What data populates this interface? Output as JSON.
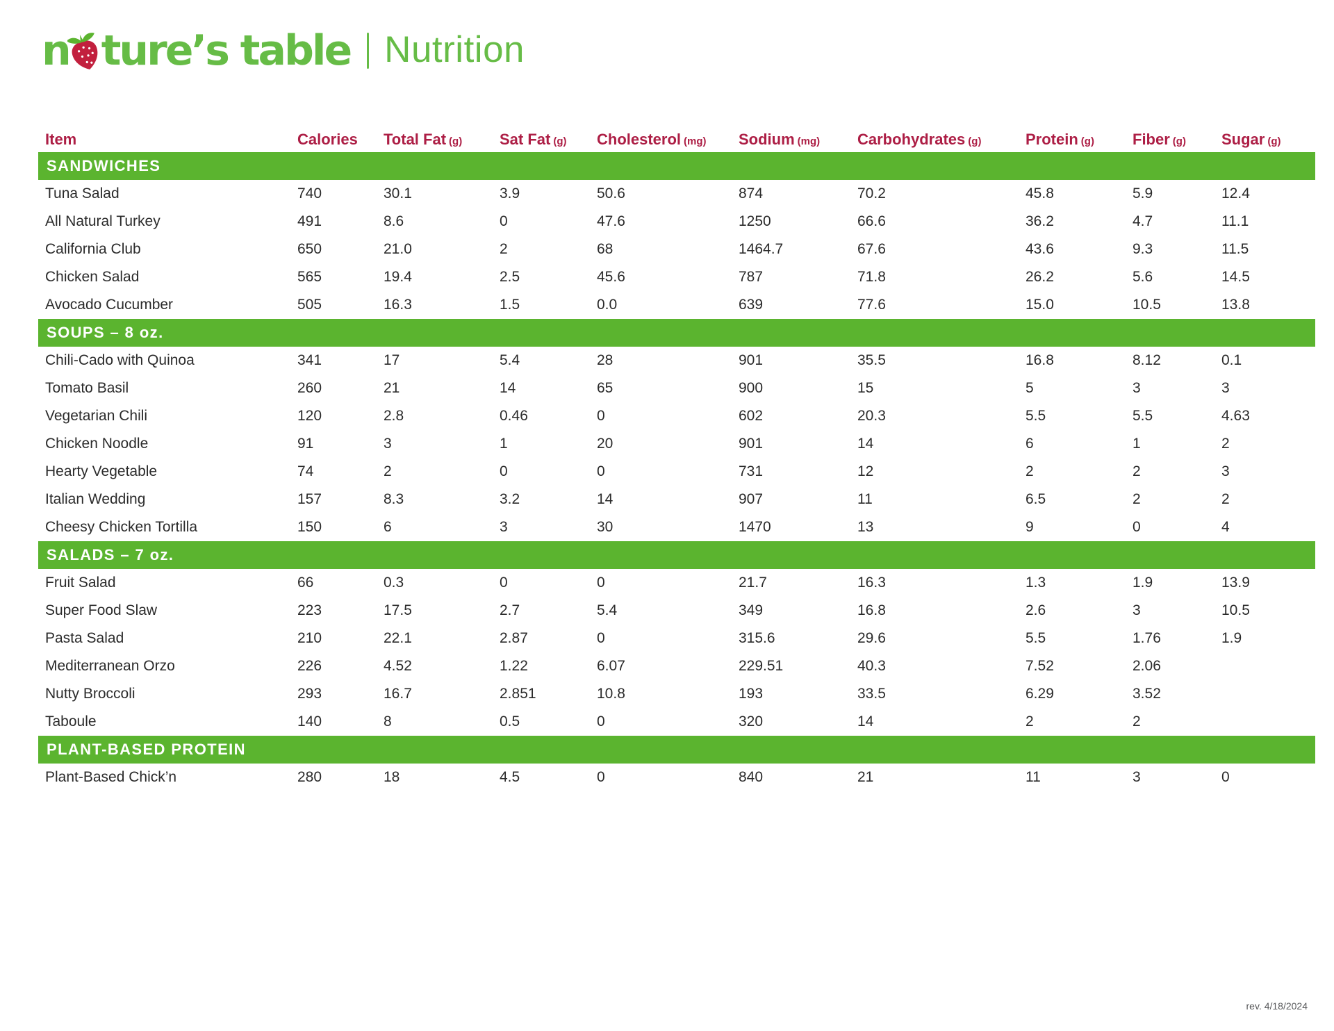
{
  "logo": {
    "part1": "n",
    "part2": "ture’s table",
    "title": "Nutrition"
  },
  "colors": {
    "logo_green": "#66BC46",
    "bar_green": "#5BB42F",
    "header_crimson": "#AD1E45",
    "strawberry_red": "#C2203E",
    "text_dark": "#2b2b2b"
  },
  "table": {
    "columns": [
      {
        "label": "Item",
        "unit": ""
      },
      {
        "label": "Calories",
        "unit": ""
      },
      {
        "label": "Total Fat",
        "unit": "(g)"
      },
      {
        "label": "Sat Fat",
        "unit": "(g)"
      },
      {
        "label": "Cholesterol",
        "unit": "(mg)"
      },
      {
        "label": "Sodium",
        "unit": "(mg)"
      },
      {
        "label": "Carbohydrates",
        "unit": "(g)"
      },
      {
        "label": "Protein",
        "unit": "(g)"
      },
      {
        "label": "Fiber",
        "unit": "(g)"
      },
      {
        "label": "Sugar",
        "unit": "(g)"
      }
    ],
    "sections": [
      {
        "header": "SANDWICHES",
        "rows": [
          {
            "item": "Tuna Salad",
            "values": [
              "740",
              "30.1",
              "3.9",
              "50.6",
              "874",
              "70.2",
              "45.8",
              "5.9",
              "12.4"
            ]
          },
          {
            "item": "All Natural Turkey",
            "values": [
              "491",
              "8.6",
              "0",
              "47.6",
              "1250",
              "66.6",
              "36.2",
              "4.7",
              "11.1"
            ]
          },
          {
            "item": "California Club",
            "values": [
              "650",
              "21.0",
              "2",
              "68",
              "1464.7",
              "67.6",
              "43.6",
              "9.3",
              "11.5"
            ]
          },
          {
            "item": "Chicken Salad",
            "values": [
              "565",
              "19.4",
              "2.5",
              "45.6",
              "787",
              "71.8",
              "26.2",
              "5.6",
              "14.5"
            ]
          },
          {
            "item": "Avocado Cucumber",
            "values": [
              "505",
              "16.3",
              "1.5",
              "0.0",
              "639",
              "77.6",
              "15.0",
              "10.5",
              "13.8"
            ]
          }
        ]
      },
      {
        "header": "SOUPS – 8 oz.",
        "rows": [
          {
            "item": "Chili-Cado with Quinoa",
            "values": [
              "341",
              "17",
              "5.4",
              "28",
              "901",
              "35.5",
              "16.8",
              "8.12",
              "0.1"
            ]
          },
          {
            "item": "Tomato Basil",
            "values": [
              "260",
              "21",
              "14",
              "65",
              "900",
              "15",
              "5",
              "3",
              "3"
            ]
          },
          {
            "item": "Vegetarian Chili",
            "values": [
              "120",
              "2.8",
              "0.46",
              "0",
              "602",
              "20.3",
              "5.5",
              "5.5",
              "4.63"
            ]
          },
          {
            "item": "Chicken Noodle",
            "values": [
              "91",
              "3",
              "1",
              "20",
              "901",
              "14",
              "6",
              "1",
              "2"
            ]
          },
          {
            "item": "Hearty Vegetable",
            "values": [
              "74",
              "2",
              "0",
              "0",
              "731",
              "12",
              "2",
              "2",
              "3"
            ]
          },
          {
            "item": "Italian Wedding",
            "values": [
              "157",
              "8.3",
              "3.2",
              "14",
              "907",
              "11",
              "6.5",
              "2",
              "2"
            ]
          },
          {
            "item": "Cheesy Chicken Tortilla",
            "values": [
              "150",
              "6",
              "3",
              "30",
              "1470",
              "13",
              "9",
              "0",
              "4"
            ]
          }
        ]
      },
      {
        "header": "SALADS – 7 oz.",
        "rows": [
          {
            "item": "Fruit Salad",
            "values": [
              "66",
              "0.3",
              "0",
              "0",
              "21.7",
              "16.3",
              "1.3",
              "1.9",
              "13.9"
            ]
          },
          {
            "item": "Super Food Slaw",
            "values": [
              "223",
              "17.5",
              "2.7",
              "5.4",
              "349",
              "16.8",
              "2.6",
              "3",
              "10.5"
            ]
          },
          {
            "item": "Pasta Salad",
            "values": [
              "210",
              "22.1",
              "2.87",
              "0",
              "315.6",
              "29.6",
              "5.5",
              "1.76",
              "1.9"
            ]
          },
          {
            "item": "Mediterranean Orzo",
            "values": [
              "226",
              "4.52",
              "1.22",
              "6.07",
              "229.51",
              "40.3",
              "7.52",
              "2.06",
              ""
            ]
          },
          {
            "item": "Nutty Broccoli",
            "values": [
              "293",
              "16.7",
              "2.851",
              "10.8",
              "193",
              "33.5",
              "6.29",
              "3.52",
              ""
            ]
          },
          {
            "item": "Taboule",
            "values": [
              "140",
              "8",
              "0.5",
              "0",
              "320",
              "14",
              "2",
              "2",
              ""
            ]
          }
        ]
      },
      {
        "header": "PLANT-BASED PROTEIN",
        "rows": [
          {
            "item": "Plant-Based Chick’n",
            "values": [
              "280",
              "18",
              "4.5",
              "0",
              "840",
              "21",
              "11",
              "3",
              "0"
            ]
          }
        ]
      }
    ]
  },
  "footer": {
    "revision": "rev. 4/18/2024"
  }
}
